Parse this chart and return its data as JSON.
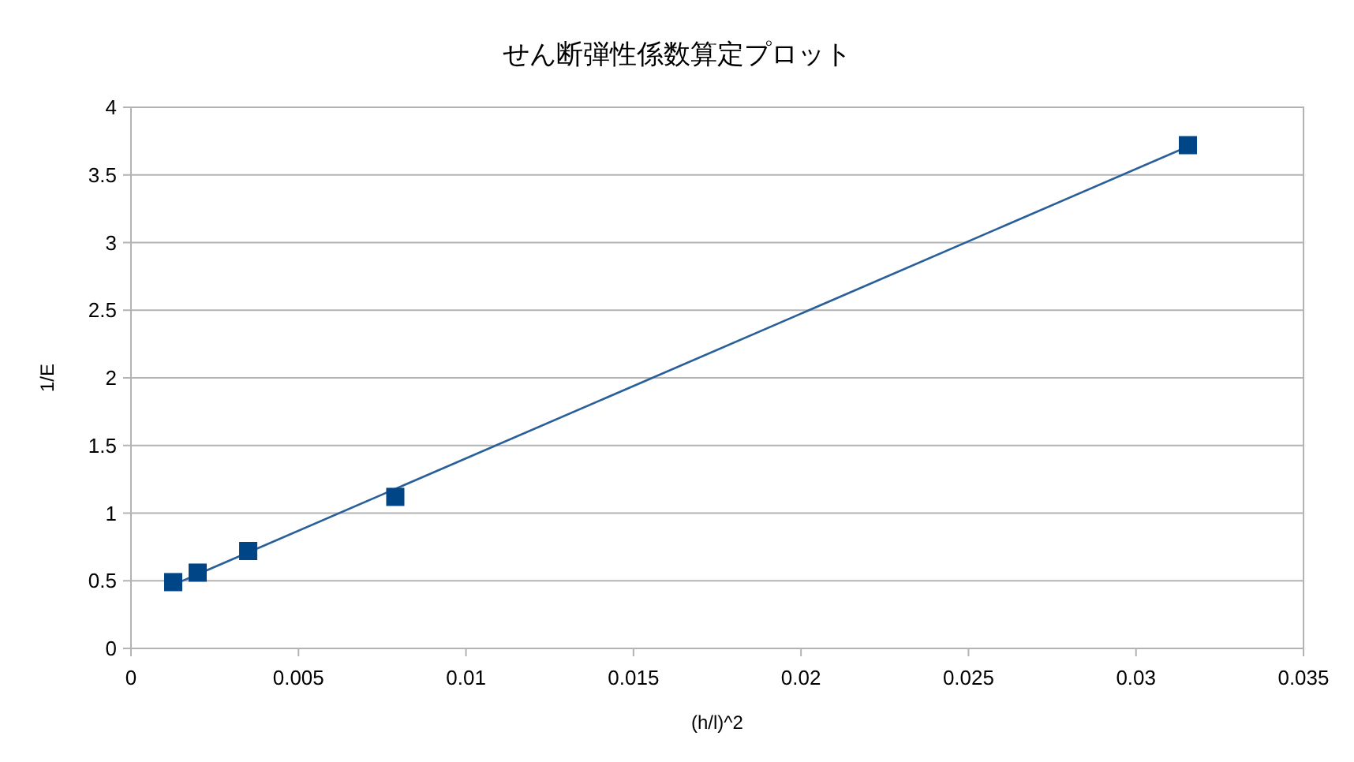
{
  "chart_data": {
    "type": "scatter",
    "title": "せん断弾性係数算定プロット",
    "xlabel": "(h/l)^2",
    "ylabel": "1/E",
    "xlim": [
      0,
      0.035
    ],
    "xticks": [
      0,
      0.005,
      0.01,
      0.015,
      0.02,
      0.025,
      0.03,
      0.035
    ],
    "ylim": [
      0,
      4
    ],
    "yticks": [
      0,
      0.5,
      1,
      1.5,
      2,
      2.5,
      3,
      3.5,
      4
    ],
    "grid": "y",
    "marker": "square",
    "series": [
      {
        "color": "#004586",
        "x": [
          0.00126,
          0.00199,
          0.0035,
          0.00789,
          0.03155
        ],
        "values": [
          0.49,
          0.56,
          0.72,
          1.12,
          3.72
        ]
      },
      {
        "type": "line",
        "marker": "none",
        "color": "#2a6099",
        "x": [
          0.00126,
          0.03155
        ],
        "values": [
          0.47,
          3.71
        ]
      }
    ]
  }
}
